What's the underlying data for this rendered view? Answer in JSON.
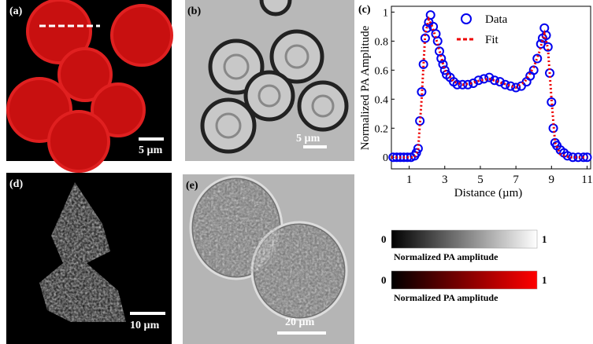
{
  "panels": {
    "a": {
      "label": "(a)",
      "scale": "5 µm"
    },
    "b": {
      "label": "(b)",
      "scale": "5 µm"
    },
    "d": {
      "label": "(d)",
      "scale": "10 µm"
    },
    "e": {
      "label": "(e)",
      "scale": "20 µm"
    }
  },
  "colorbars": [
    {
      "min": "0",
      "max": "1",
      "label": "Normalized PA amplitude",
      "colors": [
        "#000000",
        "#ffffff"
      ]
    },
    {
      "min": "0",
      "max": "1",
      "label": "Normalized PA amplitude",
      "colors": [
        "#000000",
        "#ff0000"
      ]
    }
  ],
  "chart_data": {
    "type": "scatter",
    "panel_label": "(c)",
    "x_label": "Distance (µm)",
    "y_label": "Normalized PA Amplitude",
    "xlim": [
      0,
      11.2
    ],
    "ylim": [
      -0.08,
      1.04
    ],
    "xticks": [
      1,
      3,
      5,
      7,
      9,
      11
    ],
    "yticks": [
      0,
      0.2,
      0.4,
      0.6,
      0.8,
      1
    ],
    "legend": "upper right",
    "series": [
      {
        "name": "Data",
        "color": "#0000ee",
        "mode": "markers",
        "x": [
          0.1,
          0.3,
          0.5,
          0.7,
          0.9,
          1.1,
          1.3,
          1.4,
          1.5,
          1.6,
          1.7,
          1.8,
          1.9,
          2.0,
          2.1,
          2.2,
          2.35,
          2.5,
          2.6,
          2.7,
          2.8,
          2.9,
          3.0,
          3.1,
          3.3,
          3.5,
          3.7,
          4.0,
          4.3,
          4.6,
          4.9,
          5.2,
          5.5,
          5.8,
          6.1,
          6.4,
          6.7,
          7.0,
          7.3,
          7.6,
          7.8,
          8.0,
          8.2,
          8.4,
          8.5,
          8.6,
          8.7,
          8.8,
          8.9,
          9.0,
          9.1,
          9.2,
          9.3,
          9.5,
          9.7,
          9.9,
          10.2,
          10.5,
          10.8,
          11.0
        ],
        "values": [
          0,
          0,
          0,
          0,
          0,
          0,
          0.01,
          0.03,
          0.06,
          0.25,
          0.45,
          0.64,
          0.82,
          0.89,
          0.93,
          0.98,
          0.9,
          0.85,
          0.8,
          0.73,
          0.68,
          0.64,
          0.6,
          0.57,
          0.55,
          0.52,
          0.5,
          0.5,
          0.5,
          0.51,
          0.53,
          0.54,
          0.55,
          0.53,
          0.52,
          0.5,
          0.49,
          0.48,
          0.49,
          0.52,
          0.56,
          0.6,
          0.68,
          0.78,
          0.82,
          0.89,
          0.84,
          0.76,
          0.58,
          0.38,
          0.2,
          0.1,
          0.08,
          0.05,
          0.03,
          0.01,
          0,
          0,
          0,
          0
        ]
      },
      {
        "name": "Fit",
        "color": "#ee0000",
        "mode": "dotted-line",
        "x": [
          0,
          1.3,
          1.5,
          1.7,
          1.9,
          2.1,
          2.3,
          2.6,
          3.0,
          3.5,
          4.0,
          4.5,
          5.0,
          5.5,
          6.0,
          6.5,
          7.0,
          7.5,
          8.0,
          8.3,
          8.6,
          8.8,
          9.0,
          9.2,
          9.5,
          10,
          11
        ],
        "values": [
          0,
          0,
          0.05,
          0.4,
          0.85,
          0.95,
          0.9,
          0.78,
          0.6,
          0.52,
          0.5,
          0.51,
          0.53,
          0.54,
          0.52,
          0.5,
          0.48,
          0.52,
          0.62,
          0.72,
          0.85,
          0.75,
          0.4,
          0.1,
          0.02,
          0,
          0
        ]
      }
    ]
  }
}
